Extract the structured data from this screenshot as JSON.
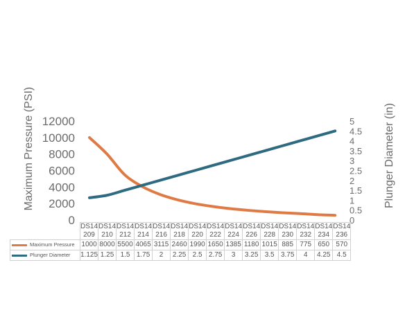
{
  "chart_data": {
    "type": "line",
    "categories": [
      "DS14 209",
      "DS14 210",
      "DS14 212",
      "DS14 214",
      "DS14 216",
      "DS14 218",
      "DS14 220",
      "DS14 222",
      "DS14 224",
      "DS14 226",
      "DS14 228",
      "DS14 230",
      "DS14 232",
      "DS14 234",
      "DS14 236"
    ],
    "series": [
      {
        "name": "Maximum Pressure",
        "axis": "left",
        "color": "#e07a45",
        "values": [
          1000,
          8000,
          5500,
          4065,
          3115,
          2460,
          1990,
          1650,
          1385,
          1180,
          1015,
          885,
          775,
          650,
          570
        ],
        "labels": [
          "1000",
          "8000",
          "5500",
          "4065",
          "3115",
          "2460",
          "1990",
          "1650",
          "1385",
          "1180",
          "1015",
          "885",
          "775",
          "650",
          "570"
        ]
      },
      {
        "name": "Plunger Diameter",
        "axis": "right",
        "color": "#2e6a80",
        "values": [
          1.125,
          1.25,
          1.5,
          1.75,
          2,
          2.25,
          2.5,
          2.75,
          3,
          3.25,
          3.5,
          3.75,
          4,
          4.25,
          4.5
        ],
        "labels": [
          "1.125",
          "1.25",
          "1.5",
          "1.75",
          "2",
          "2.25",
          "2.5",
          "2.75",
          "3",
          "3.25",
          "3.5",
          "3.75",
          "4",
          "4.25",
          "4.5"
        ]
      }
    ],
    "ylabel": "Maximum Pressure (PSI)",
    "y2label": "Plunger Diameter (in)",
    "ylim": [
      0,
      12000
    ],
    "yticks": [
      "0",
      "2000",
      "4000",
      "6000",
      "8000",
      "10000",
      "12000"
    ],
    "y2lim": [
      0,
      5
    ],
    "y2ticks": [
      "0",
      "0.5",
      "1",
      "1.5",
      "2",
      "2.5",
      "3",
      "3.5",
      "4",
      "4.5",
      "5"
    ],
    "grid": false,
    "legend": "data-table"
  }
}
